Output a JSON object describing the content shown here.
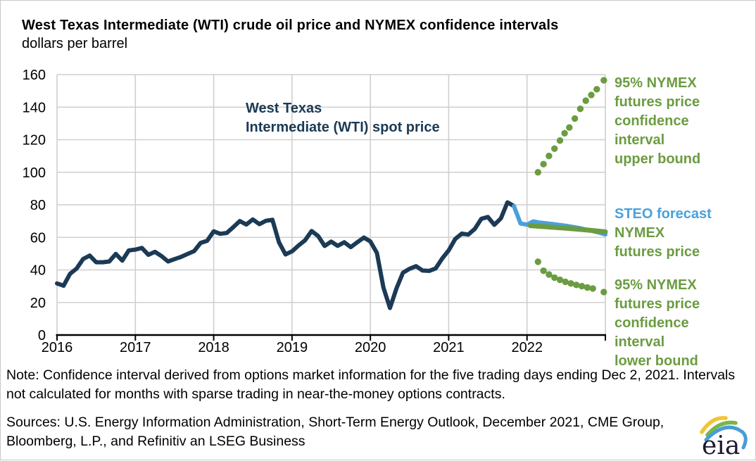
{
  "header": {
    "title": "West Texas Intermediate (WTI) crude oil price and NYMEX confidence intervals",
    "subtitle": "dollars per barrel"
  },
  "annotations": {
    "spot_label": {
      "line1": "West Texas",
      "line2": "Intermediate (WTI) spot price"
    },
    "upper_label": {
      "line1": "95% NYMEX",
      "line2": "futures price",
      "line3": "confidence",
      "line4": "interval",
      "line5": "upper bound"
    },
    "steo_label": "STEO forecast",
    "nymex_label": {
      "line1": "NYMEX",
      "line2": "futures price"
    },
    "lower_label": {
      "line1": "95% NYMEX",
      "line2": "futures price",
      "line3": "confidence",
      "line4": "interval",
      "line5": "lower bound"
    }
  },
  "note": "Note: Confidence interval derived from options market information for the five trading days ending Dec 2, 2021. Intervals not calculated for months with sparse trading in near-the-money options contracts.",
  "sources": "Sources: U.S. Energy Information Administration, Short-Term Energy Outlook, December 2021, CME Group, Bloomberg, L.P., and Refinitiv an LSEG Business",
  "logo_text": "eia",
  "colors": {
    "spot": "#1B3A55",
    "steo": "#4BA0DB",
    "nymex": "#6B9C41",
    "grid": "#CFCFCF",
    "axis": "#000000"
  },
  "chart_data": {
    "type": "line",
    "title": "West Texas Intermediate (WTI) crude oil price and NYMEX confidence intervals",
    "ylabel": "dollars per barrel",
    "xlabel": "",
    "ylim": [
      0,
      160
    ],
    "xlim": [
      2016,
      2023
    ],
    "grid": true,
    "legend_position": "right-annotations",
    "y_ticks": [
      0,
      20,
      40,
      60,
      80,
      100,
      120,
      140,
      160
    ],
    "x_ticks": [
      2016,
      2017,
      2018,
      2019,
      2020,
      2021,
      2022
    ],
    "series": [
      {
        "name": "West Texas Intermediate (WTI) spot price",
        "color_key": "spot",
        "stroke_width": 6,
        "start_x": 2016.0,
        "x_step_months": 1,
        "values": [
          31.7,
          30.3,
          37.6,
          40.8,
          46.7,
          48.8,
          44.7,
          44.7,
          45.2,
          49.8,
          45.7,
          52.0,
          52.5,
          53.5,
          49.3,
          51.1,
          48.5,
          45.2,
          46.6,
          48.0,
          49.8,
          51.6,
          56.6,
          57.9,
          63.7,
          62.2,
          62.7,
          66.3,
          70.0,
          67.9,
          71.0,
          68.1,
          70.2,
          70.8,
          57.0,
          49.5,
          51.4,
          55.0,
          58.2,
          63.9,
          60.8,
          54.7,
          57.4,
          54.8,
          57.0,
          54.0,
          57.0,
          59.9,
          57.5,
          50.5,
          29.2,
          16.6,
          28.6,
          38.3,
          40.7,
          42.3,
          39.6,
          39.4,
          40.9,
          47.0,
          52.0,
          59.0,
          62.3,
          61.7,
          65.2,
          71.4,
          72.5,
          67.7,
          71.7,
          81.5,
          79.2
        ]
      },
      {
        "name": "STEO forecast",
        "color_key": "steo",
        "stroke_width": 6,
        "points": [
          [
            2021.833,
            79.2
          ],
          [
            2021.917,
            68.5
          ],
          [
            2022.0,
            67.8
          ],
          [
            2022.08,
            69.8
          ],
          [
            2022.17,
            69.0
          ],
          [
            2022.33,
            68.2
          ],
          [
            2022.5,
            67.1
          ],
          [
            2022.67,
            65.7
          ],
          [
            2022.83,
            64.0
          ],
          [
            2022.92,
            62.9
          ],
          [
            2023.0,
            61.8
          ]
        ]
      },
      {
        "name": "NYMEX futures price",
        "color_key": "nymex",
        "stroke_width": 7,
        "points": [
          [
            2022.04,
            67.2
          ],
          [
            2022.25,
            66.5
          ],
          [
            2022.5,
            65.6
          ],
          [
            2022.75,
            64.6
          ],
          [
            2022.92,
            63.8
          ],
          [
            2023.0,
            63.4
          ]
        ]
      }
    ],
    "dot_series": [
      {
        "name": "95% NYMEX futures price confidence interval upper bound",
        "color_key": "nymex",
        "dot_radius": 4.7,
        "points": [
          [
            2022.14,
            100
          ],
          [
            2022.21,
            105
          ],
          [
            2022.28,
            110
          ],
          [
            2022.35,
            114.5
          ],
          [
            2022.42,
            119.5
          ],
          [
            2022.48,
            124
          ],
          [
            2022.54,
            127.5
          ],
          [
            2022.61,
            133
          ],
          [
            2022.68,
            139
          ],
          [
            2022.75,
            144
          ],
          [
            2022.82,
            147.5
          ],
          [
            2022.89,
            151
          ],
          [
            2022.98,
            156.5
          ]
        ]
      },
      {
        "name": "95% NYMEX futures price confidence interval lower bound",
        "color_key": "nymex",
        "dot_radius": 4.7,
        "points": [
          [
            2022.14,
            45
          ],
          [
            2022.21,
            39.5
          ],
          [
            2022.28,
            37.2
          ],
          [
            2022.35,
            35.3
          ],
          [
            2022.42,
            33.9
          ],
          [
            2022.49,
            32.7
          ],
          [
            2022.56,
            31.7
          ],
          [
            2022.63,
            30.8
          ],
          [
            2022.7,
            30.0
          ],
          [
            2022.77,
            29.2
          ],
          [
            2022.84,
            28.6
          ],
          [
            2022.98,
            26.4
          ]
        ]
      }
    ]
  }
}
